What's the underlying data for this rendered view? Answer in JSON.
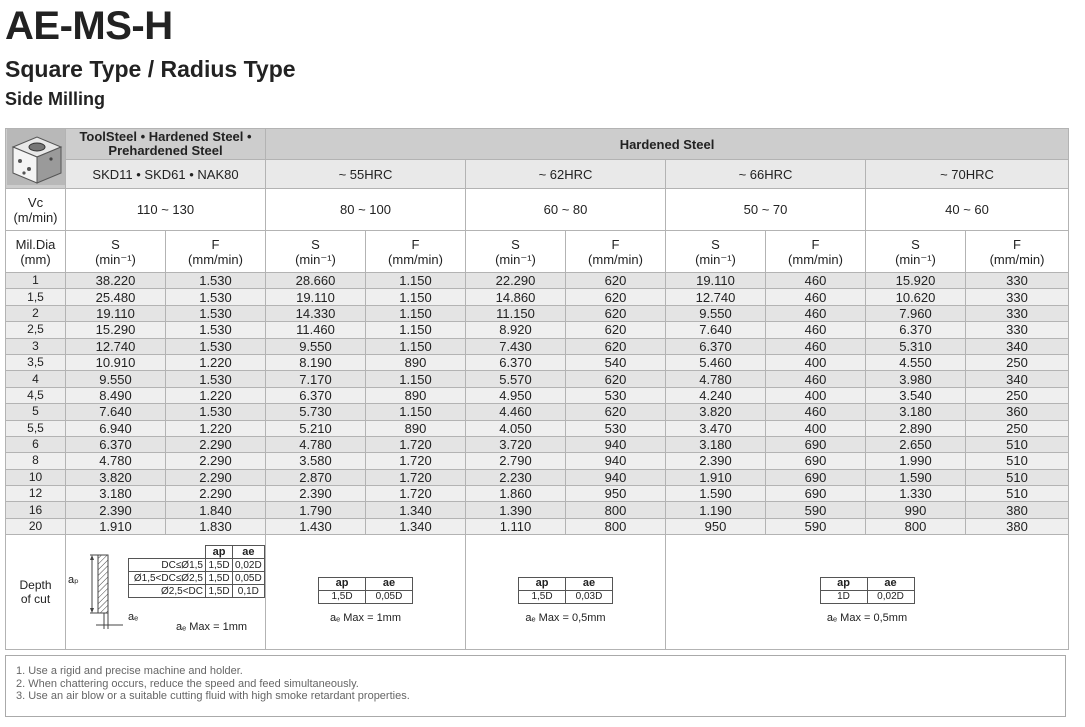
{
  "header": {
    "title": "AE-MS-H",
    "subtitle": "Square Type / Radius Type",
    "section": "Side Milling"
  },
  "table": {
    "material_group": [
      "ToolSteel • Hardened Steel •",
      "Prehardened Steel"
    ],
    "material_grades": "SKD11 • SKD61 • NAK80",
    "hardened_group": "Hardened Steel",
    "hardness": [
      "~ 55HRC",
      "~ 62HRC",
      "~ 66HRC",
      "~ 70HRC"
    ],
    "vc_label": [
      "Vc",
      "(m/min)"
    ],
    "vc": [
      "110 ~ 130",
      "80 ~ 100",
      "60 ~ 80",
      "50 ~ 70",
      "40 ~ 60"
    ],
    "dia_label": [
      "Mil.Dia",
      "(mm)"
    ],
    "column_headers": [
      {
        "name": "S",
        "unit": "(min⁻¹)"
      },
      {
        "name": "F",
        "unit": "(mm/min)"
      },
      {
        "name": "S",
        "unit": "(min⁻¹)"
      },
      {
        "name": "F",
        "unit": "(mm/min)"
      },
      {
        "name": "S",
        "unit": "(min⁻¹)"
      },
      {
        "name": "F",
        "unit": "(mm/min)"
      },
      {
        "name": "S",
        "unit": "(min⁻¹)"
      },
      {
        "name": "F",
        "unit": "(mm/min)"
      },
      {
        "name": "S",
        "unit": "(min⁻¹)"
      },
      {
        "name": "F",
        "unit": "(mm/min)"
      }
    ],
    "rows": [
      [
        "1",
        "38.220",
        "1.530",
        "28.660",
        "1.150",
        "22.290",
        "620",
        "19.110",
        "460",
        "15.920",
        "330"
      ],
      [
        "1,5",
        "25.480",
        "1.530",
        "19.110",
        "1.150",
        "14.860",
        "620",
        "12.740",
        "460",
        "10.620",
        "330"
      ],
      [
        "2",
        "19.110",
        "1.530",
        "14.330",
        "1.150",
        "11.150",
        "620",
        "9.550",
        "460",
        "7.960",
        "330"
      ],
      [
        "2,5",
        "15.290",
        "1.530",
        "11.460",
        "1.150",
        "8.920",
        "620",
        "7.640",
        "460",
        "6.370",
        "330"
      ],
      [
        "3",
        "12.740",
        "1.530",
        "9.550",
        "1.150",
        "7.430",
        "620",
        "6.370",
        "460",
        "5.310",
        "340"
      ],
      [
        "3,5",
        "10.910",
        "1.220",
        "8.190",
        "890",
        "6.370",
        "540",
        "5.460",
        "400",
        "4.550",
        "250"
      ],
      [
        "4",
        "9.550",
        "1.530",
        "7.170",
        "1.150",
        "5.570",
        "620",
        "4.780",
        "460",
        "3.980",
        "340"
      ],
      [
        "4,5",
        "8.490",
        "1.220",
        "6.370",
        "890",
        "4.950",
        "530",
        "4.240",
        "400",
        "3.540",
        "250"
      ],
      [
        "5",
        "7.640",
        "1.530",
        "5.730",
        "1.150",
        "4.460",
        "620",
        "3.820",
        "460",
        "3.180",
        "360"
      ],
      [
        "5,5",
        "6.940",
        "1.220",
        "5.210",
        "890",
        "4.050",
        "530",
        "3.470",
        "400",
        "2.890",
        "250"
      ],
      [
        "6",
        "6.370",
        "2.290",
        "4.780",
        "1.720",
        "3.720",
        "940",
        "3.180",
        "690",
        "2.650",
        "510"
      ],
      [
        "8",
        "4.780",
        "2.290",
        "3.580",
        "1.720",
        "2.790",
        "940",
        "2.390",
        "690",
        "1.990",
        "510"
      ],
      [
        "10",
        "3.820",
        "2.290",
        "2.870",
        "1.720",
        "2.230",
        "940",
        "1.910",
        "690",
        "1.590",
        "510"
      ],
      [
        "12",
        "3.180",
        "2.290",
        "2.390",
        "1.720",
        "1.860",
        "950",
        "1.590",
        "690",
        "1.330",
        "510"
      ],
      [
        "16",
        "2.390",
        "1.840",
        "1.790",
        "1.340",
        "1.390",
        "800",
        "1.190",
        "590",
        "990",
        "380"
      ],
      [
        "20",
        "1.910",
        "1.830",
        "1.430",
        "1.340",
        "1.110",
        "800",
        "950",
        "590",
        "800",
        "380"
      ]
    ],
    "depth_of_cut": {
      "label": [
        "Depth",
        "of cut"
      ],
      "groups": [
        {
          "ap_label": "aₚ",
          "ae_label": "aₑ",
          "headers": [
            "ap",
            "ae"
          ],
          "rows": [
            [
              "DC≤Ø1,5",
              "1,5D",
              "0,02D"
            ],
            [
              "Ø1,5<DC≤Ø2,5",
              "1,5D",
              "0,05D"
            ],
            [
              "Ø2,5<DC",
              "1,5D",
              "0,1D"
            ]
          ],
          "max": "aₑ Max = 1mm"
        },
        {
          "headers": [
            "ap",
            "ae"
          ],
          "rows": [
            [
              "1,5D",
              "0,05D"
            ]
          ],
          "max": "aₑ Max = 1mm"
        },
        {
          "headers": [
            "ap",
            "ae"
          ],
          "rows": [
            [
              "1,5D",
              "0,03D"
            ]
          ],
          "max": "aₑ Max = 0,5mm"
        },
        {
          "headers": [
            "ap",
            "ae"
          ],
          "rows": [
            [
              "1D",
              "0,02D"
            ]
          ],
          "max": "aₑ Max = 0,5mm"
        }
      ]
    }
  },
  "notes": [
    "1. Use a rigid and precise machine and holder.",
    "2. When chattering occurs, reduce the speed and feed simultaneously.",
    "3. Use an air blow or a suitable cutting fluid with high smoke retardant properties."
  ]
}
